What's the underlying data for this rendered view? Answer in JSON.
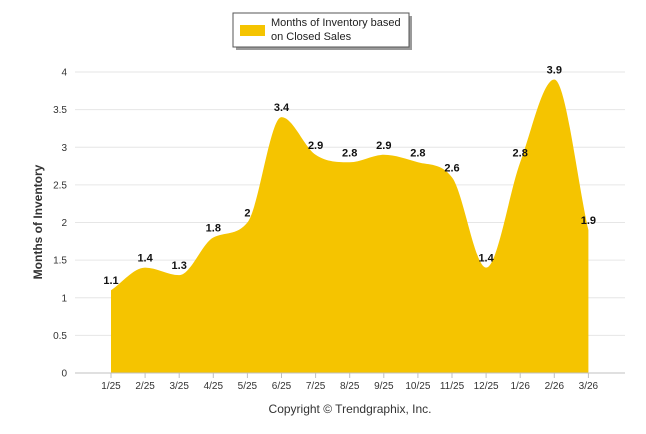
{
  "chart_data": {
    "type": "area",
    "title": "",
    "xlabel": "",
    "ylabel": "Months of Inventory",
    "categories": [
      "1/25",
      "2/25",
      "3/25",
      "4/25",
      "5/25",
      "6/25",
      "7/25",
      "8/25",
      "9/25",
      "10/25",
      "11/25",
      "12/25",
      "1/26",
      "2/26",
      "3/26"
    ],
    "series": [
      {
        "name": "Months of Inventory based on Closed Sales",
        "values": [
          1.1,
          1.4,
          1.3,
          1.8,
          2,
          3.4,
          2.9,
          2.8,
          2.9,
          2.8,
          2.6,
          1.4,
          2.8,
          3.9,
          1.9
        ],
        "labels": [
          "1.1",
          "1.4",
          "1.3",
          "1.8",
          "2",
          "3.4",
          "2.9",
          "2.8",
          "2.9",
          "2.8",
          "2.6",
          "1.4",
          "2.8",
          "3.9",
          "1.9"
        ],
        "color": "#F5C400"
      }
    ],
    "ylim": [
      0,
      4
    ],
    "yticks": [
      "0",
      "0.5",
      "1",
      "1.5",
      "2",
      "2.5",
      "3",
      "3.5",
      "4"
    ],
    "grid": true,
    "legend": {
      "position": "top-center",
      "line1": "Months of Inventory based",
      "line2": "on Closed Sales"
    }
  },
  "footer": {
    "copyright": "Copyright © Trendgraphix, Inc."
  }
}
